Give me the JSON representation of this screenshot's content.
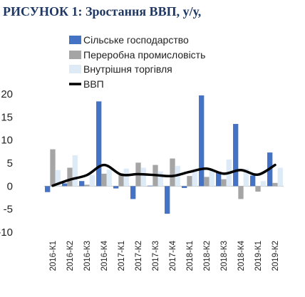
{
  "chart_data": {
    "type": "bar",
    "title": "РИСУНОК 1: Зростання ВВП, у/у,",
    "categories": [
      "2016-К1",
      "2016-К2",
      "2016-К3",
      "2016-К4",
      "2017-К1",
      "2017-К2",
      "2017-К3",
      "2017-К4",
      "2018-К1",
      "2018-К2",
      "2018-К3",
      "2018-К4",
      "2019-К1",
      "2019-К2"
    ],
    "ylim": [
      -10,
      20
    ],
    "yticks": [
      20,
      15,
      10,
      5,
      0,
      -5,
      -10
    ],
    "legend_position": "top",
    "series": [
      {
        "name": "Сільське господарство",
        "type": "bar",
        "color": "#4472c4",
        "values": [
          -1.3,
          0.6,
          1.1,
          18.4,
          -0.5,
          -2.8,
          0.1,
          -6.0,
          -0.4,
          19.7,
          3.1,
          13.5,
          2.3,
          7.3
        ]
      },
      {
        "name": "Переробна промисловість",
        "type": "bar",
        "color": "#a5a5a5",
        "values": [
          8.0,
          4.0,
          0.3,
          2.7,
          2.8,
          5.1,
          4.6,
          6.0,
          2.2,
          2.0,
          1.5,
          -2.8,
          -1.2,
          0.7
        ]
      },
      {
        "name": "Внутрішня торгівля",
        "type": "bar",
        "color": "#deebf7",
        "values": [
          3.5,
          6.7,
          2.4,
          3.6,
          3.8,
          4.0,
          3.2,
          4.4,
          3.2,
          3.5,
          5.8,
          3.8,
          1.1,
          4.0
        ]
      },
      {
        "name": "ВВП",
        "type": "line",
        "color": "#000000",
        "values": [
          0.1,
          1.4,
          2.4,
          4.6,
          2.5,
          2.6,
          2.4,
          2.2,
          3.1,
          3.8,
          2.7,
          3.5,
          2.5,
          4.6
        ]
      }
    ]
  }
}
